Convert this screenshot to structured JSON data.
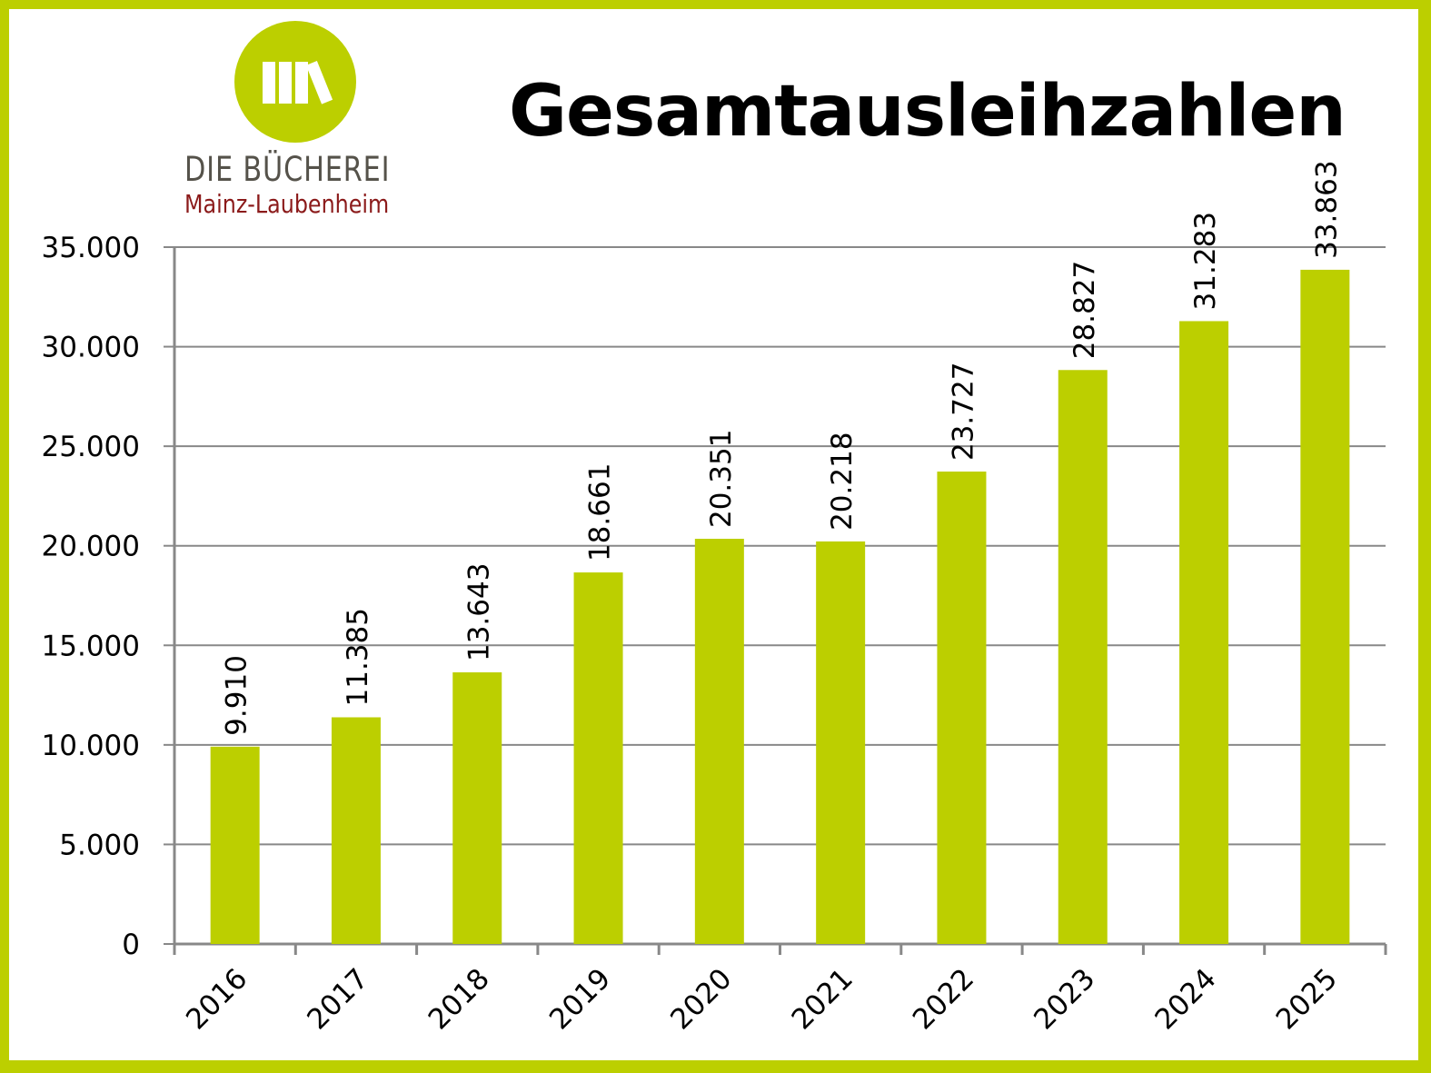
{
  "logo": {
    "name": "DIE BÜCHEREI",
    "subtitle": "Mainz-Laubenheim"
  },
  "colors": {
    "accent": "#bccf00",
    "grid": "#888888",
    "logo_name": "#55524a",
    "logo_sub": "#8b1a1a"
  },
  "chart_data": {
    "type": "bar",
    "title": "Gesamtausleihzahlen",
    "xlabel": "",
    "ylabel": "",
    "categories": [
      "2016",
      "2017",
      "2018",
      "2019",
      "2020",
      "2021",
      "2022",
      "2023",
      "2024",
      "2025"
    ],
    "values": [
      9910,
      11385,
      13643,
      18661,
      20351,
      20218,
      23727,
      28827,
      31283,
      33863
    ],
    "data_labels": [
      "9.910",
      "11.385",
      "13.643",
      "18.661",
      "20.351",
      "20.218",
      "23.727",
      "28.827",
      "31.283",
      "33.863"
    ],
    "ylim": [
      0,
      35000
    ],
    "yticks": [
      0,
      5000,
      10000,
      15000,
      20000,
      25000,
      30000,
      35000
    ],
    "ytick_labels": [
      "0",
      "5.000",
      "10.000",
      "15.000",
      "20.000",
      "25.000",
      "30.000",
      "35.000"
    ],
    "grid": true,
    "legend": "none"
  }
}
